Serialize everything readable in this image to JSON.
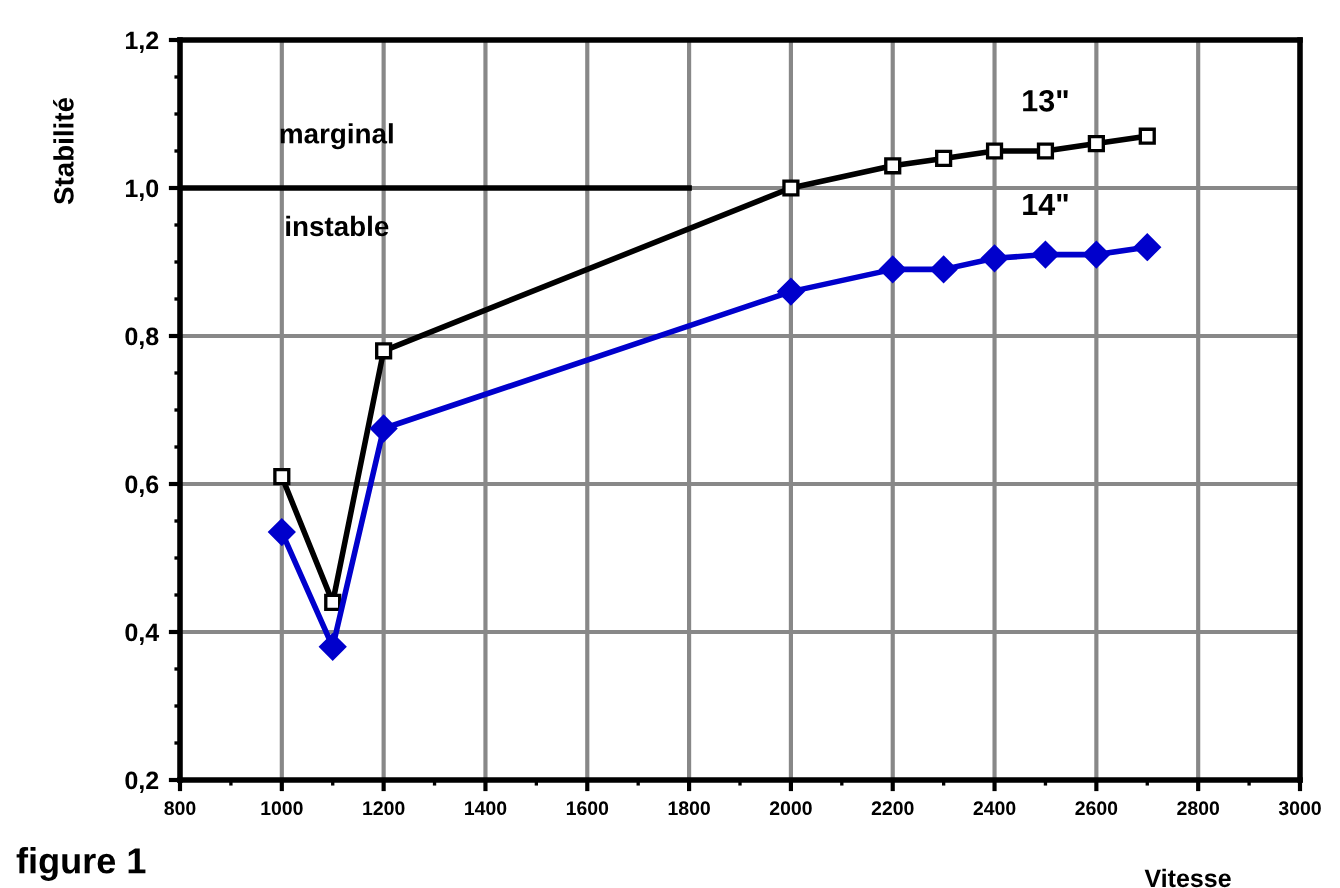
{
  "chart_data": {
    "type": "line",
    "ylabel": "Stabilité",
    "xlabel": "Vitesse",
    "annotations": [
      "figure 1",
      "marginal",
      "instable"
    ],
    "xlim": [
      800,
      3000
    ],
    "xticks": [
      800,
      1000,
      1200,
      1400,
      1600,
      1800,
      2000,
      2200,
      2400,
      2600,
      2800,
      3000
    ],
    "ylim": [
      0.2,
      1.2
    ],
    "yticks": [
      {
        "value": 0.2,
        "label": "0,2"
      },
      {
        "value": 0.4,
        "label": "0,4"
      },
      {
        "value": 0.6,
        "label": "0,6"
      },
      {
        "value": 0.8,
        "label": "0,8"
      },
      {
        "value": 1.0,
        "label": "1,0"
      },
      {
        "value": 1.2,
        "label": "1,2"
      }
    ],
    "grid": true,
    "series": [
      {
        "name": "13\"",
        "color": "#000000",
        "marker": "square",
        "x": [
          1000,
          1100,
          1200,
          2000,
          2200,
          2300,
          2400,
          2500,
          2600,
          2700
        ],
        "values": [
          0.61,
          0.44,
          0.78,
          1.0,
          1.03,
          1.04,
          1.05,
          1.05,
          1.06,
          1.07
        ]
      },
      {
        "name": "14\"",
        "color": "#0000cc",
        "marker": "diamond",
        "x": [
          1000,
          1100,
          1200,
          2000,
          2200,
          2300,
          2400,
          2500,
          2600,
          2700
        ],
        "values": [
          0.535,
          0.38,
          0.675,
          0.86,
          0.89,
          0.89,
          0.905,
          0.91,
          0.91,
          0.92
        ]
      },
      {
        "color": "#000000",
        "marker": "none",
        "x": [
          800,
          1800
        ],
        "values": [
          1.0,
          1.0
        ]
      }
    ]
  }
}
